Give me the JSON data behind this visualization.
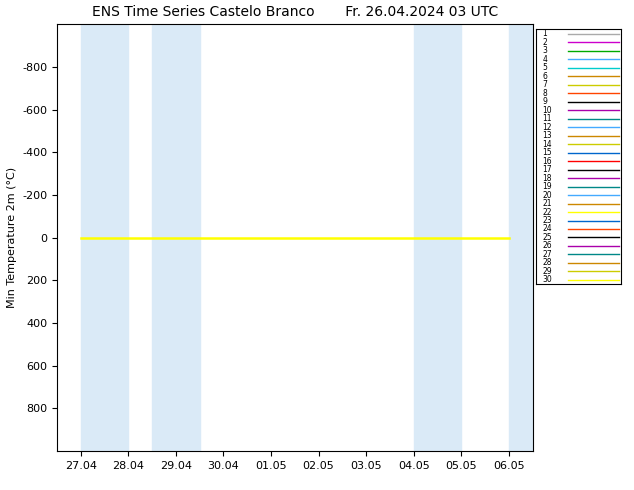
{
  "title_left": "ENS Time Series Castelo Branco",
  "title_right": "Fr. 26.04.2024 03 UTC",
  "ylabel": "Min Temperature 2m (°C)",
  "ylim": [
    1000,
    -1000
  ],
  "yticks": [
    800,
    600,
    400,
    200,
    0,
    -200,
    -400,
    -600,
    -800
  ],
  "ytick_labels": [
    "800",
    "600",
    "400",
    "200",
    "0",
    "-200",
    "-400",
    "-600",
    "-800"
  ],
  "xtick_labels": [
    "27.04",
    "28.04",
    "29.04",
    "30.04",
    "01.05",
    "02.05",
    "03.05",
    "04.05",
    "05.05",
    "06.05"
  ],
  "xtick_positions": [
    0,
    1,
    2,
    3,
    4,
    5,
    6,
    7,
    8,
    9
  ],
  "shaded_bands": [
    [
      0.0,
      1.0
    ],
    [
      1.5,
      2.5
    ],
    [
      7.0,
      8.0
    ],
    [
      9.0,
      9.5
    ]
  ],
  "shaded_color": "#daeaf7",
  "n_members": 30,
  "member_colors": [
    "#aaaaaa",
    "#cc00cc",
    "#00aa00",
    "#44aaff",
    "#00cccc",
    "#cc8800",
    "#cccc00",
    "#ff4400",
    "#000000",
    "#aa00aa",
    "#008888",
    "#44aaff",
    "#cc8800",
    "#cccc00",
    "#0066cc",
    "#ff0000",
    "#000000",
    "#aa00aa",
    "#008888",
    "#44aaff",
    "#cc8800",
    "#ffff00",
    "#0066cc",
    "#ff4400",
    "#000000",
    "#aa00aa",
    "#008888",
    "#cc8800",
    "#cccc00",
    "#ffff00"
  ],
  "title_fontsize": 10,
  "axis_fontsize": 8,
  "legend_fontsize": 5.5
}
